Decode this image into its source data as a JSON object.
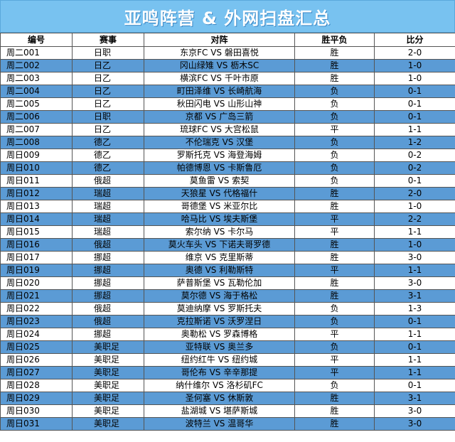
{
  "title": "亚鸣阵营 & 外网扫盘汇总",
  "headers": [
    "编号",
    "赛事",
    "对阵",
    "胜平负",
    "比分"
  ],
  "rows": [
    {
      "code": "周二001",
      "league": "日职",
      "match": "东京FC VS 磐田喜悦",
      "result": "胜",
      "score": "2-0"
    },
    {
      "code": "周二002",
      "league": "日乙",
      "match": "冈山绿雉 VS 枥木SC",
      "result": "胜",
      "score": "1-0"
    },
    {
      "code": "周二003",
      "league": "日乙",
      "match": "横滨FC VS 千叶市原",
      "result": "胜",
      "score": "1-0"
    },
    {
      "code": "周二004",
      "league": "日乙",
      "match": "町田泽维 VS 长崎航海",
      "result": "负",
      "score": "0-1"
    },
    {
      "code": "周二005",
      "league": "日乙",
      "match": "秋田闪电 VS 山形山神",
      "result": "负",
      "score": "0-1"
    },
    {
      "code": "周二006",
      "league": "日职",
      "match": "京都 VS 广岛三箭",
      "result": "负",
      "score": "0-1"
    },
    {
      "code": "周二007",
      "league": "日乙",
      "match": "琉球FC VS 大宫松鼠",
      "result": "平",
      "score": "1-1"
    },
    {
      "code": "周二008",
      "league": "德乙",
      "match": "不伦瑞克 VS 汉堡",
      "result": "负",
      "score": "1-2"
    },
    {
      "code": "周日009",
      "league": "德乙",
      "match": "罗斯托克 VS 海登海姆",
      "result": "负",
      "score": "0-2"
    },
    {
      "code": "周日010",
      "league": "德乙",
      "match": "帕德博恩 VS 卡斯鲁厄",
      "result": "负",
      "score": "0-2"
    },
    {
      "code": "周日011",
      "league": "俄超",
      "match": "莫鱼雷 VS 索契",
      "result": "负",
      "score": "0-1"
    },
    {
      "code": "周日012",
      "league": "瑞超",
      "match": "天狼星 VS 代格福什",
      "result": "胜",
      "score": "2-0"
    },
    {
      "code": "周日013",
      "league": "瑞超",
      "match": "哥德堡 VS 米亚尔比",
      "result": "胜",
      "score": "1-0"
    },
    {
      "code": "周日014",
      "league": "瑞超",
      "match": "哈马比 VS 埃夫斯堡",
      "result": "平",
      "score": "2-2"
    },
    {
      "code": "周日015",
      "league": "瑞超",
      "match": "索尔纳 VS 卡尔马",
      "result": "平",
      "score": "1-1"
    },
    {
      "code": "周日016",
      "league": "俄超",
      "match": "莫火车头 VS 下诺夫哥罗德",
      "result": "胜",
      "score": "1-0"
    },
    {
      "code": "周日017",
      "league": "挪超",
      "match": "维京 VS 克里斯蒂",
      "result": "胜",
      "score": "3-0"
    },
    {
      "code": "周日019",
      "league": "挪超",
      "match": "奥德 VS 利勒斯特",
      "result": "平",
      "score": "1-1"
    },
    {
      "code": "周日020",
      "league": "挪超",
      "match": "萨普斯堡 VS 瓦勒伦加",
      "result": "胜",
      "score": "3-0"
    },
    {
      "code": "周日021",
      "league": "挪超",
      "match": "莫尔德 VS 海于格松",
      "result": "胜",
      "score": "3-1"
    },
    {
      "code": "周日022",
      "league": "俄超",
      "match": "莫迪纳摩 VS 罗斯托夫",
      "result": "负",
      "score": "1-3"
    },
    {
      "code": "周日023",
      "league": "俄超",
      "match": "克拉斯诺 VS 沃罗涅日",
      "result": "负",
      "score": "0-1"
    },
    {
      "code": "周日024",
      "league": "挪超",
      "match": "奥勒松 VS 罗森博格",
      "result": "平",
      "score": "1-1"
    },
    {
      "code": "周日025",
      "league": "美职足",
      "match": "亚特联 VS 奥兰多",
      "result": "负",
      "score": "0-1"
    },
    {
      "code": "周日026",
      "league": "美职足",
      "match": "纽约红牛 VS 纽约城",
      "result": "平",
      "score": "1-1"
    },
    {
      "code": "周日027",
      "league": "美职足",
      "match": "哥伦布 VS 辛辛那提",
      "result": "平",
      "score": "1-1"
    },
    {
      "code": "周日028",
      "league": "美职足",
      "match": "纳什维尔 VS 洛杉矶FC",
      "result": "负",
      "score": "0-1"
    },
    {
      "code": "周日029",
      "league": "美职足",
      "match": "圣何塞 VS 休斯敦",
      "result": "胜",
      "score": "3-1"
    },
    {
      "code": "周日030",
      "league": "美职足",
      "match": "盐湖城 VS 堪萨斯城",
      "result": "胜",
      "score": "3-0"
    },
    {
      "code": "周日031",
      "league": "美职足",
      "match": "波特兰 VS 温哥华",
      "result": "胜",
      "score": "3-0"
    }
  ]
}
